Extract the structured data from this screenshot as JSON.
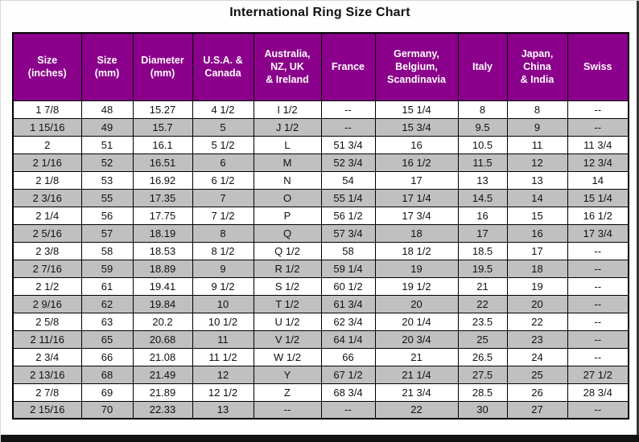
{
  "page": {
    "title": "International Ring Size Chart"
  },
  "colors": {
    "header_bg": "#8B008B",
    "header_text": "#FFFFFF",
    "stripe_bg": "#C0C0C0",
    "row_bg": "#FFFFFF",
    "border": "#000000"
  },
  "chart_data": {
    "type": "table",
    "title": "International Ring Size Chart",
    "layout_hints": {
      "header_style": "purple background, white bold text",
      "row_striping": "alternating white and gray starting with white",
      "grid": "on"
    },
    "columns": [
      "Size\n(inches)",
      "Size\n(mm)",
      "Diameter\n(mm)",
      "U.S.A. &\nCanada",
      "Australia,\nNZ, UK\n& Ireland",
      "France",
      "Germany,\nBelgium,\nScandinavia",
      "Italy",
      "Japan,\nChina\n& India",
      "Swiss"
    ],
    "rows": [
      [
        "1  7/8",
        "48",
        "15.27",
        "4 1/2",
        "I 1/2",
        "--",
        "15 1/4",
        "8",
        "8",
        "--"
      ],
      [
        "1 15/16",
        "49",
        "15.7",
        "5",
        "J 1/2",
        "--",
        "15 3/4",
        "9.5",
        "9",
        "--"
      ],
      [
        "2",
        "51",
        "16.1",
        "5 1/2",
        "L",
        "51 3/4",
        "16",
        "10.5",
        "11",
        "11 3/4"
      ],
      [
        "2  1/16",
        "52",
        "16.51",
        "6",
        "M",
        "52 3/4",
        "16 1/2",
        "11.5",
        "12",
        "12 3/4"
      ],
      [
        "2  1/8",
        "53",
        "16.92",
        "6 1/2",
        "N",
        "54",
        "17",
        "13",
        "13",
        "14"
      ],
      [
        "2  3/16",
        "55",
        "17.35",
        "7",
        "O",
        "55 1/4",
        "17 1/4",
        "14.5",
        "14",
        "15 1/4"
      ],
      [
        "2  1/4",
        "56",
        "17.75",
        "7 1/2",
        "P",
        "56 1/2",
        "17 3/4",
        "16",
        "15",
        "16 1/2"
      ],
      [
        "2  5/16",
        "57",
        "18.19",
        "8",
        "Q",
        "57 3/4",
        "18",
        "17",
        "16",
        "17 3/4"
      ],
      [
        "2  3/8",
        "58",
        "18.53",
        "8 1/2",
        "Q 1/2",
        "58",
        "18 1/2",
        "18.5",
        "17",
        "--"
      ],
      [
        "2  7/16",
        "59",
        "18.89",
        "9",
        "R 1/2",
        "59 1/4",
        "19",
        "19.5",
        "18",
        "--"
      ],
      [
        "2  1/2",
        "61",
        "19.41",
        "9 1/2",
        "S 1/2",
        "60 1/2",
        "19 1/2",
        "21",
        "19",
        "--"
      ],
      [
        "2  9/16",
        "62",
        "19.84",
        "10",
        "T 1/2",
        "61 3/4",
        "20",
        "22",
        "20",
        "--"
      ],
      [
        "2  5/8",
        "63",
        "20.2",
        "10 1/2",
        "U 1/2",
        "62 3/4",
        "20 1/4",
        "23.5",
        "22",
        "--"
      ],
      [
        "2 11/16",
        "65",
        "20.68",
        "11",
        "V 1/2",
        "64 1/4",
        "20 3/4",
        "25",
        "23",
        "--"
      ],
      [
        "2  3/4",
        "66",
        "21.08",
        "11 1/2",
        "W 1/2",
        "66",
        "21",
        "26.5",
        "24",
        "--"
      ],
      [
        "2 13/16",
        "68",
        "21.49",
        "12",
        "Y",
        "67 1/2",
        "21 1/4",
        "27.5",
        "25",
        "27 1/2"
      ],
      [
        "2  7/8",
        "69",
        "21.89",
        "12 1/2",
        "Z",
        "68 3/4",
        "21 3/4",
        "28.5",
        "26",
        "28 3/4"
      ],
      [
        "2 15/16",
        "70",
        "22.33",
        "13",
        "--",
        "--",
        "22",
        "30",
        "27",
        "--"
      ]
    ]
  }
}
